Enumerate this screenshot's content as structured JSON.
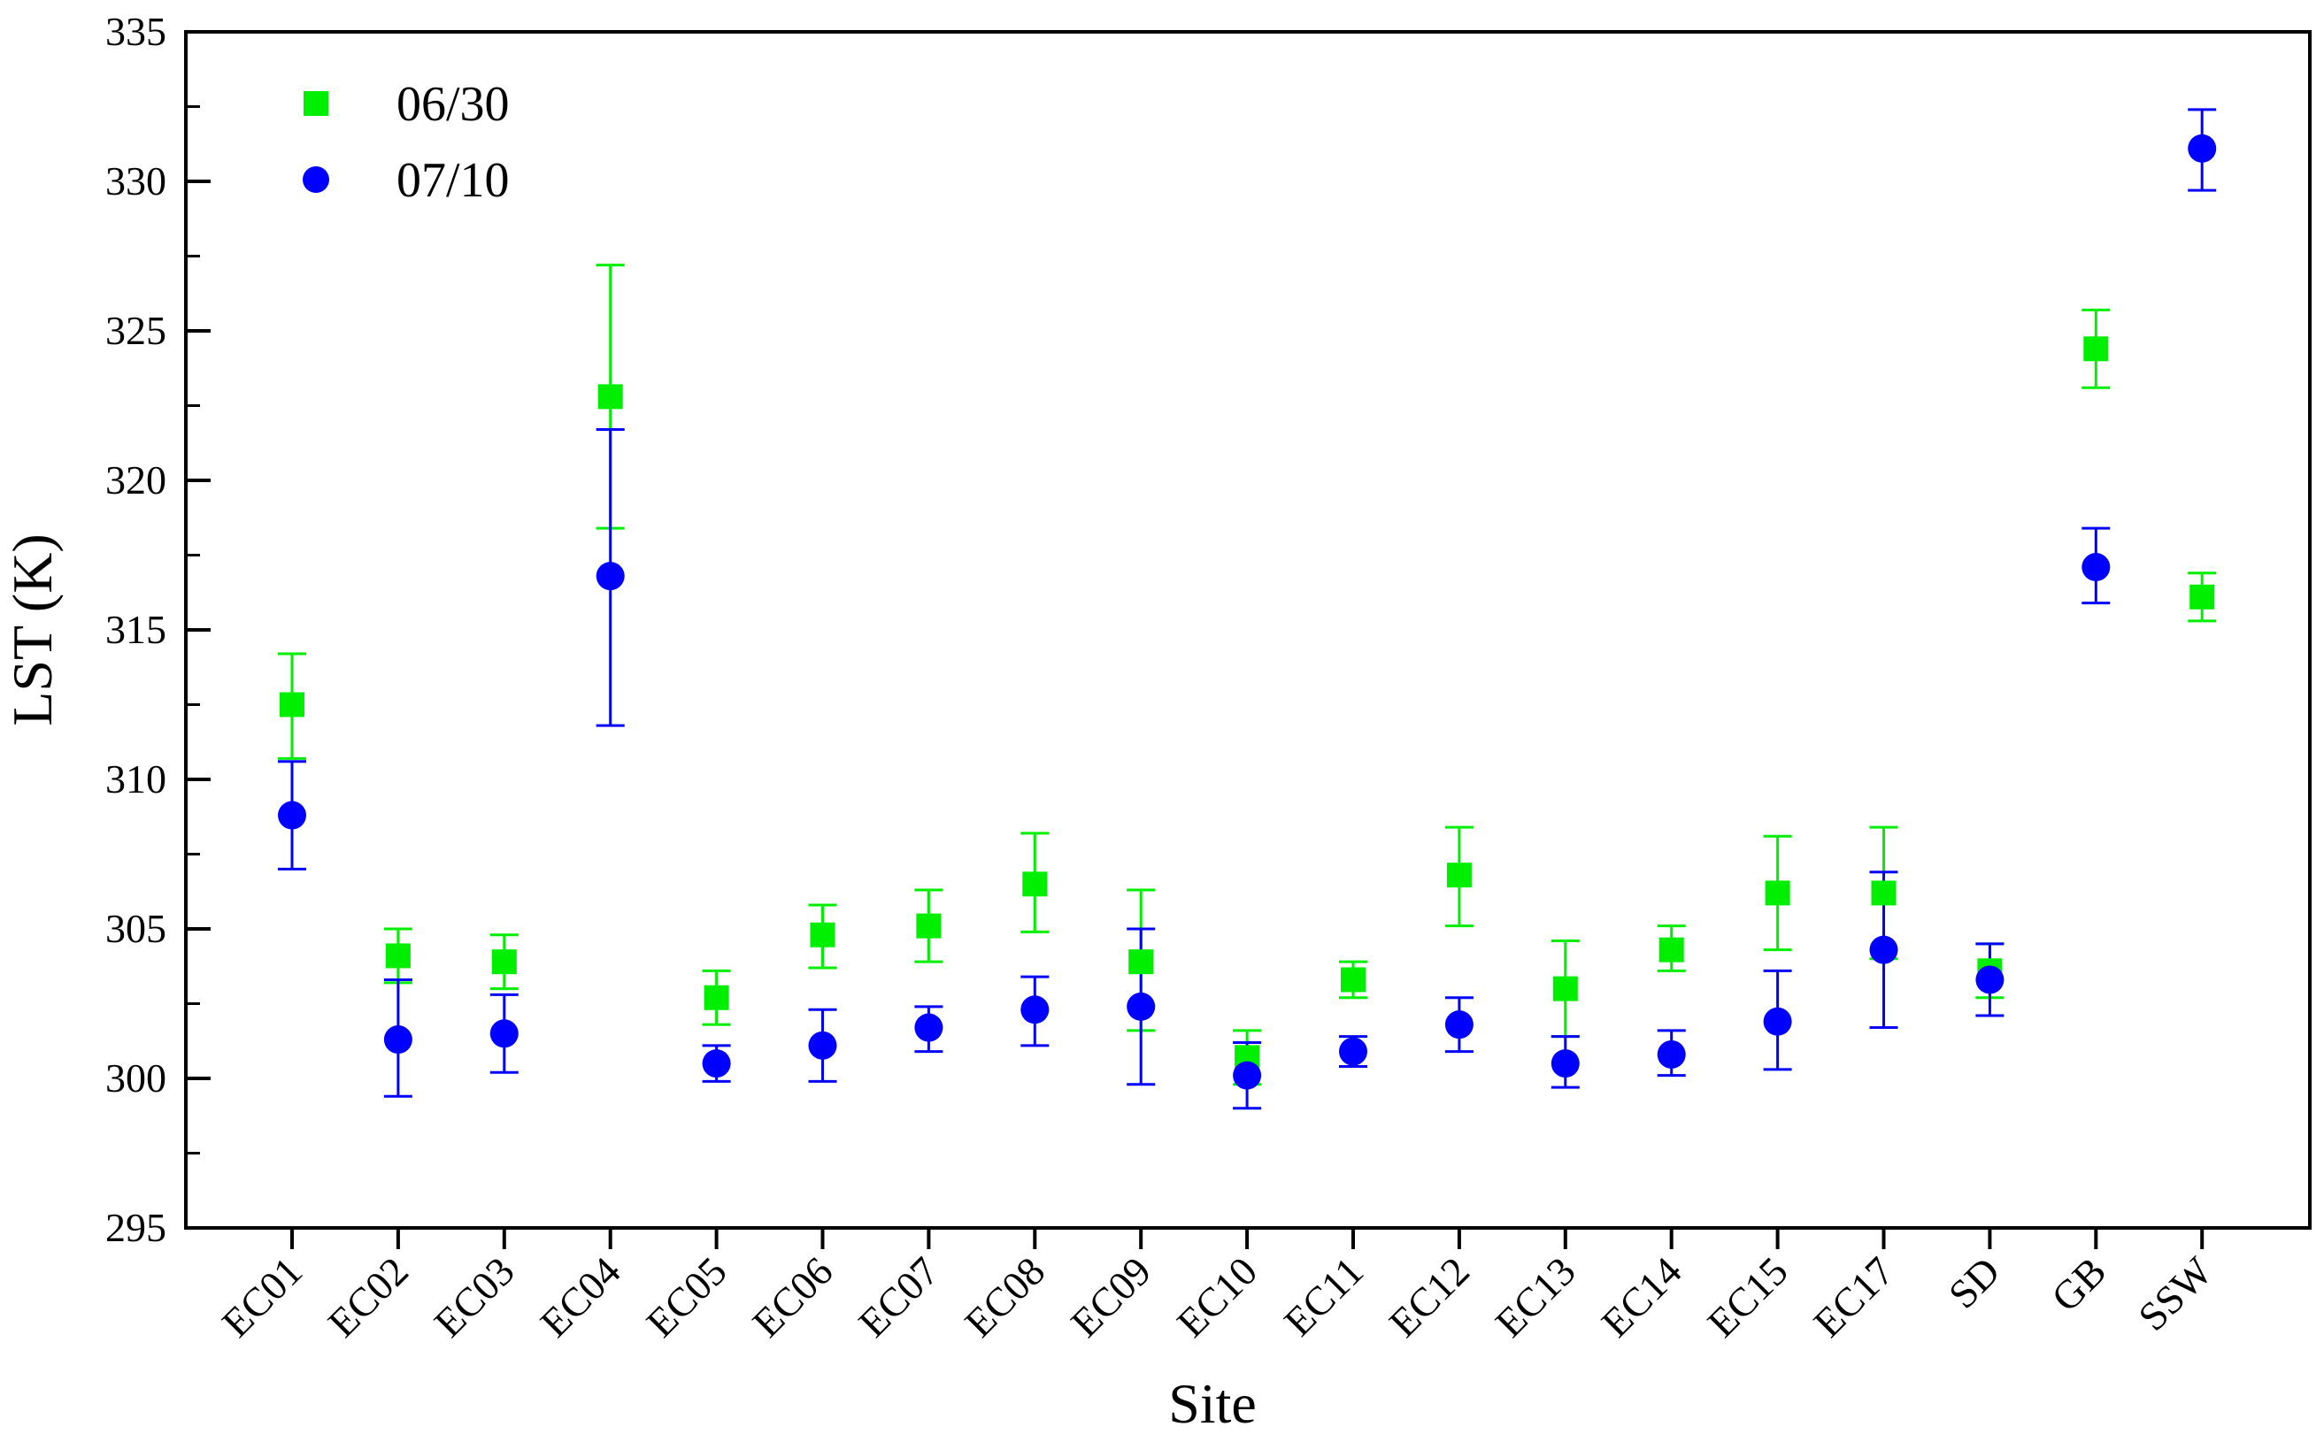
{
  "chart_data": {
    "type": "scatter",
    "title": "",
    "xlabel": "Site",
    "ylabel": "LST (K)",
    "categories": [
      "EC01",
      "EC02",
      "EC03",
      "EC04",
      "EC05",
      "EC06",
      "EC07",
      "EC08",
      "EC09",
      "EC10",
      "EC11",
      "EC12",
      "EC13",
      "EC14",
      "EC15",
      "EC17",
      "SD",
      "GB",
      "SSW"
    ],
    "ylim": [
      295,
      335
    ],
    "yticks": [
      295,
      300,
      305,
      310,
      315,
      320,
      325,
      330,
      335
    ],
    "legend_position": "top-left",
    "series": [
      {
        "name": "06/30",
        "color": "#00ee00",
        "marker": "square",
        "values": [
          312.5,
          304.1,
          303.9,
          322.8,
          302.7,
          304.8,
          305.1,
          306.5,
          303.9,
          300.7,
          303.3,
          306.8,
          303.0,
          304.3,
          306.2,
          306.2,
          303.6,
          324.4,
          316.1
        ],
        "err_low": [
          310.7,
          303.2,
          303.0,
          318.4,
          301.8,
          303.7,
          303.9,
          304.9,
          301.6,
          299.8,
          302.7,
          305.1,
          301.4,
          303.6,
          304.3,
          304.0,
          302.7,
          323.1,
          315.3
        ],
        "err_high": [
          314.2,
          305.0,
          304.8,
          327.2,
          303.6,
          305.8,
          306.3,
          308.2,
          306.3,
          301.6,
          303.9,
          308.4,
          304.6,
          305.1,
          308.1,
          308.4,
          304.5,
          325.7,
          316.9
        ]
      },
      {
        "name": "07/10",
        "color": "#0000ff",
        "marker": "circle",
        "values": [
          308.8,
          301.3,
          301.5,
          316.8,
          300.5,
          301.1,
          301.7,
          302.3,
          302.4,
          300.1,
          300.9,
          301.8,
          300.5,
          300.8,
          301.9,
          304.3,
          303.3,
          317.1,
          331.1
        ],
        "err_low": [
          307.0,
          299.4,
          300.2,
          311.8,
          299.9,
          299.9,
          300.9,
          301.1,
          299.8,
          299.0,
          300.4,
          300.9,
          299.7,
          300.1,
          300.3,
          301.7,
          302.1,
          315.9,
          329.7
        ],
        "err_high": [
          310.6,
          303.3,
          302.8,
          321.7,
          301.1,
          302.3,
          302.4,
          303.4,
          305.0,
          301.2,
          301.4,
          302.7,
          301.4,
          301.6,
          303.6,
          306.9,
          304.5,
          318.4,
          332.4
        ]
      }
    ]
  }
}
